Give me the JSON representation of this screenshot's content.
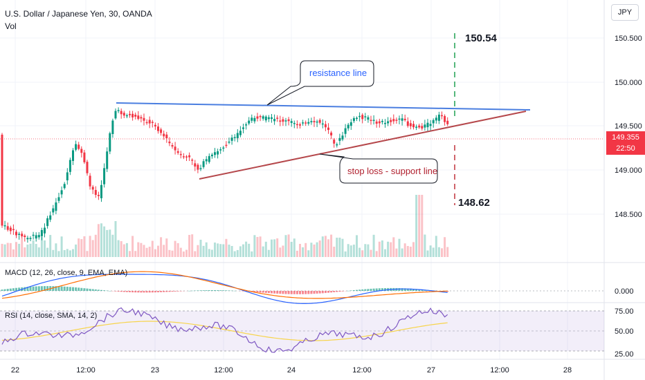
{
  "header": {
    "title": "U.S. Dollar / Japanese Yen, 30, OANDA",
    "vol_label": "Vol",
    "currency_button": "JPY"
  },
  "colors": {
    "up": "#089981",
    "down": "#f23645",
    "resistance": "#4a7ee0",
    "support": "#b5474b",
    "macd_line": "#2962ff",
    "signal_line": "#ff6d00",
    "rsi_line": "#7e57c2",
    "rsi_ma": "#f7d44a"
  },
  "indicators": {
    "macd_label": "MACD (12, 26, close, 9, EMA, EMA)",
    "rsi_label": "RSI (14, close, SMA, 14, 2)"
  },
  "price_tag": {
    "price": "149.355",
    "countdown": "22:50"
  },
  "chart_data": {
    "type": "candlestick",
    "price_axis": {
      "ticks": [
        "150.500",
        "150.000",
        "149.500",
        "149.000",
        "148.500"
      ]
    },
    "time_axis": {
      "ticks": [
        "22",
        "12:00",
        "23",
        "12:00",
        "24",
        "12:00",
        "27",
        "12:00",
        "28"
      ]
    },
    "macd_axis": {
      "ticks": [
        "0.000"
      ]
    },
    "rsi_axis": {
      "ticks": [
        "75.00",
        "50.00",
        "25.00"
      ],
      "range": [
        25,
        75
      ]
    },
    "annotations": {
      "resistance_label": "resistance line",
      "support_label": "stop loss - support line",
      "target_label": "150.54",
      "stop_label": "148.62"
    }
  }
}
